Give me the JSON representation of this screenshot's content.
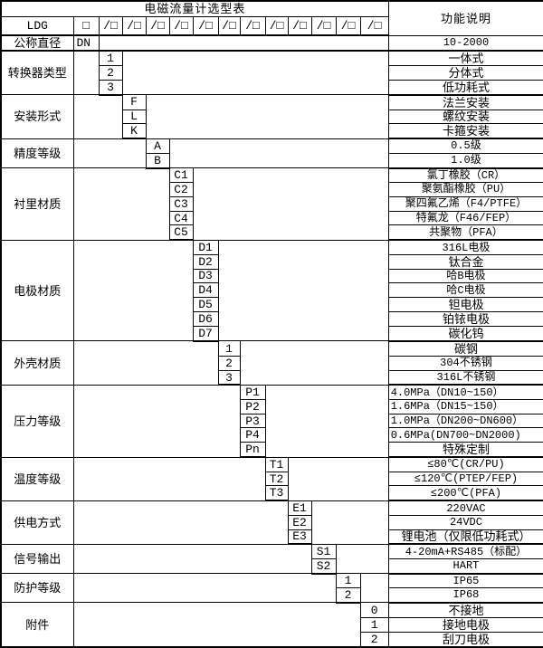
{
  "header": {
    "title": "电磁流量计选型表",
    "function_column_title": "功能说明",
    "model_prefix": "LDG",
    "first_slot": "□",
    "slots": [
      "/□",
      "/□",
      "/□",
      "/□",
      "/□",
      "/□",
      "/□",
      "/□",
      "/□",
      "/□",
      "/□",
      "/□"
    ]
  },
  "sections": [
    {
      "label": "公称直径",
      "code_column": 2,
      "rows": [
        {
          "code": "DN",
          "desc": "10-2000"
        }
      ]
    },
    {
      "label": "转换器类型",
      "code_column": 3,
      "rows": [
        {
          "code": "1",
          "desc": "一体式"
        },
        {
          "code": "2",
          "desc": "分体式"
        },
        {
          "code": "3",
          "desc": "低功耗式"
        }
      ]
    },
    {
      "label": "安装形式",
      "code_column": 4,
      "rows": [
        {
          "code": "F",
          "desc": "法兰安装"
        },
        {
          "code": "L",
          "desc": "螺纹安装"
        },
        {
          "code": "K",
          "desc": "卡箍安装"
        }
      ]
    },
    {
      "label": "精度等级",
      "code_column": 5,
      "rows": [
        {
          "code": "A",
          "desc": "0.5级"
        },
        {
          "code": "B",
          "desc": "1.0级"
        }
      ]
    },
    {
      "label": "衬里材质",
      "code_column": 6,
      "rows": [
        {
          "code": "C1",
          "desc": "氯丁橡胶（CR）"
        },
        {
          "code": "C2",
          "desc": "聚氨酯橡胶（PU）"
        },
        {
          "code": "C3",
          "desc": "聚四氟乙烯（F4/PTFE）"
        },
        {
          "code": "C4",
          "desc": "特氟龙（F46/FEP）"
        },
        {
          "code": "C5",
          "desc": "共聚物（PFA）"
        }
      ]
    },
    {
      "label": "电极材质",
      "code_column": 7,
      "rows": [
        {
          "code": "D1",
          "desc": "316L电极"
        },
        {
          "code": "D2",
          "desc": "钛合金"
        },
        {
          "code": "D3",
          "desc": "哈B电极"
        },
        {
          "code": "D4",
          "desc": "哈C电极"
        },
        {
          "code": "D5",
          "desc": "钽电极"
        },
        {
          "code": "D6",
          "desc": "铂铱电极"
        },
        {
          "code": "D7",
          "desc": "碳化钨"
        }
      ]
    },
    {
      "label": "外壳材质",
      "code_column": 8,
      "rows": [
        {
          "code": "1",
          "desc": "碳钢"
        },
        {
          "code": "2",
          "desc": "304不锈钢"
        },
        {
          "code": "3",
          "desc": "316L不锈钢"
        }
      ]
    },
    {
      "label": "压力等级",
      "code_column": 9,
      "rows": [
        {
          "code": "P1",
          "desc": "4.0MPa（DN10~150）",
          "align": "left"
        },
        {
          "code": "P2",
          "desc": "1.6MPa（DN15~150）",
          "align": "left"
        },
        {
          "code": "P3",
          "desc": "1.0MPa（DN200~DN600）",
          "align": "left"
        },
        {
          "code": "P4",
          "desc": "0.6MPa(DN700~DN2000)",
          "align": "left"
        },
        {
          "code": "Pn",
          "desc": "特殊定制"
        }
      ]
    },
    {
      "label": "温度等级",
      "code_column": 10,
      "rows": [
        {
          "code": "T1",
          "desc": "≤80℃(CR/PU)"
        },
        {
          "code": "T2",
          "desc": "≤120℃(PTEP/FEP)"
        },
        {
          "code": "T3",
          "desc": "≤200℃(PFA)"
        }
      ]
    },
    {
      "label": "供电方式",
      "code_column": 11,
      "rows": [
        {
          "code": "E1",
          "desc": "220VAC"
        },
        {
          "code": "E2",
          "desc": "24VDC"
        },
        {
          "code": "E3",
          "desc": "锂电池（仅限低功耗式）"
        }
      ]
    },
    {
      "label": "信号输出",
      "code_column": 12,
      "rows": [
        {
          "code": "S1",
          "desc": "4-20mA+RS485（标配）"
        },
        {
          "code": "S2",
          "desc": "HART"
        }
      ]
    },
    {
      "label": "防护等级",
      "code_column": 13,
      "rows": [
        {
          "code": "1",
          "desc": "IP65"
        },
        {
          "code": "2",
          "desc": "IP68"
        }
      ]
    },
    {
      "label": "附件",
      "code_column": 14,
      "rows": [
        {
          "code": "0",
          "desc": "不接地"
        },
        {
          "code": "1",
          "desc": "接地电极"
        },
        {
          "code": "2",
          "desc": "刮刀电极"
        }
      ]
    }
  ],
  "colors": {
    "border": "#000000",
    "text": "#000000",
    "background": "#ffffff"
  }
}
